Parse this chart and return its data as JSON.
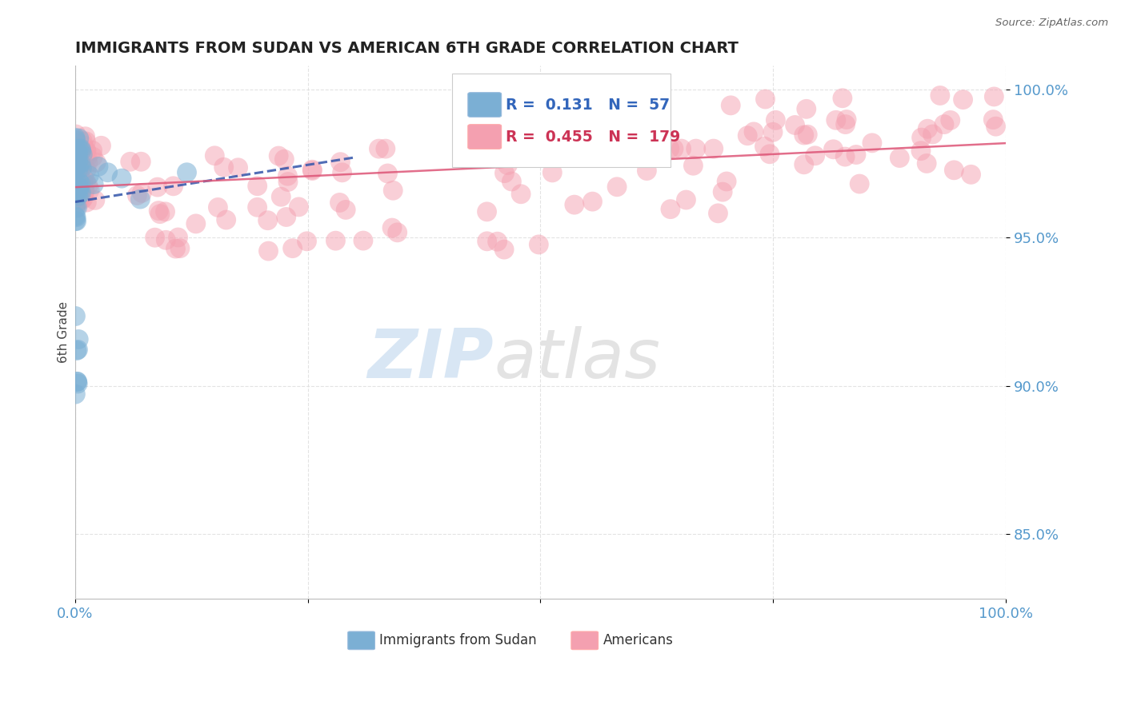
{
  "title": "IMMIGRANTS FROM SUDAN VS AMERICAN 6TH GRADE CORRELATION CHART",
  "source": "Source: ZipAtlas.com",
  "ylabel": "6th Grade",
  "ytick_labels": [
    "85.0%",
    "90.0%",
    "95.0%",
    "100.0%"
  ],
  "ytick_values": [
    0.85,
    0.9,
    0.95,
    1.0
  ],
  "xmin": 0.0,
  "xmax": 1.0,
  "ymin": 0.828,
  "ymax": 1.008,
  "legend_r_blue": "0.131",
  "legend_n_blue": "57",
  "legend_r_pink": "0.455",
  "legend_n_pink": "179",
  "blue_color": "#7BAFD4",
  "pink_color": "#F4A0B0",
  "blue_line_color": "#3355AA",
  "pink_line_color": "#DD5577",
  "watermark_zip": "ZIP",
  "watermark_atlas": "atlas",
  "legend_label_blue": "Immigrants from Sudan",
  "legend_label_pink": "Americans",
  "grid_color": "#DDDDDD",
  "tick_color": "#5599CC"
}
